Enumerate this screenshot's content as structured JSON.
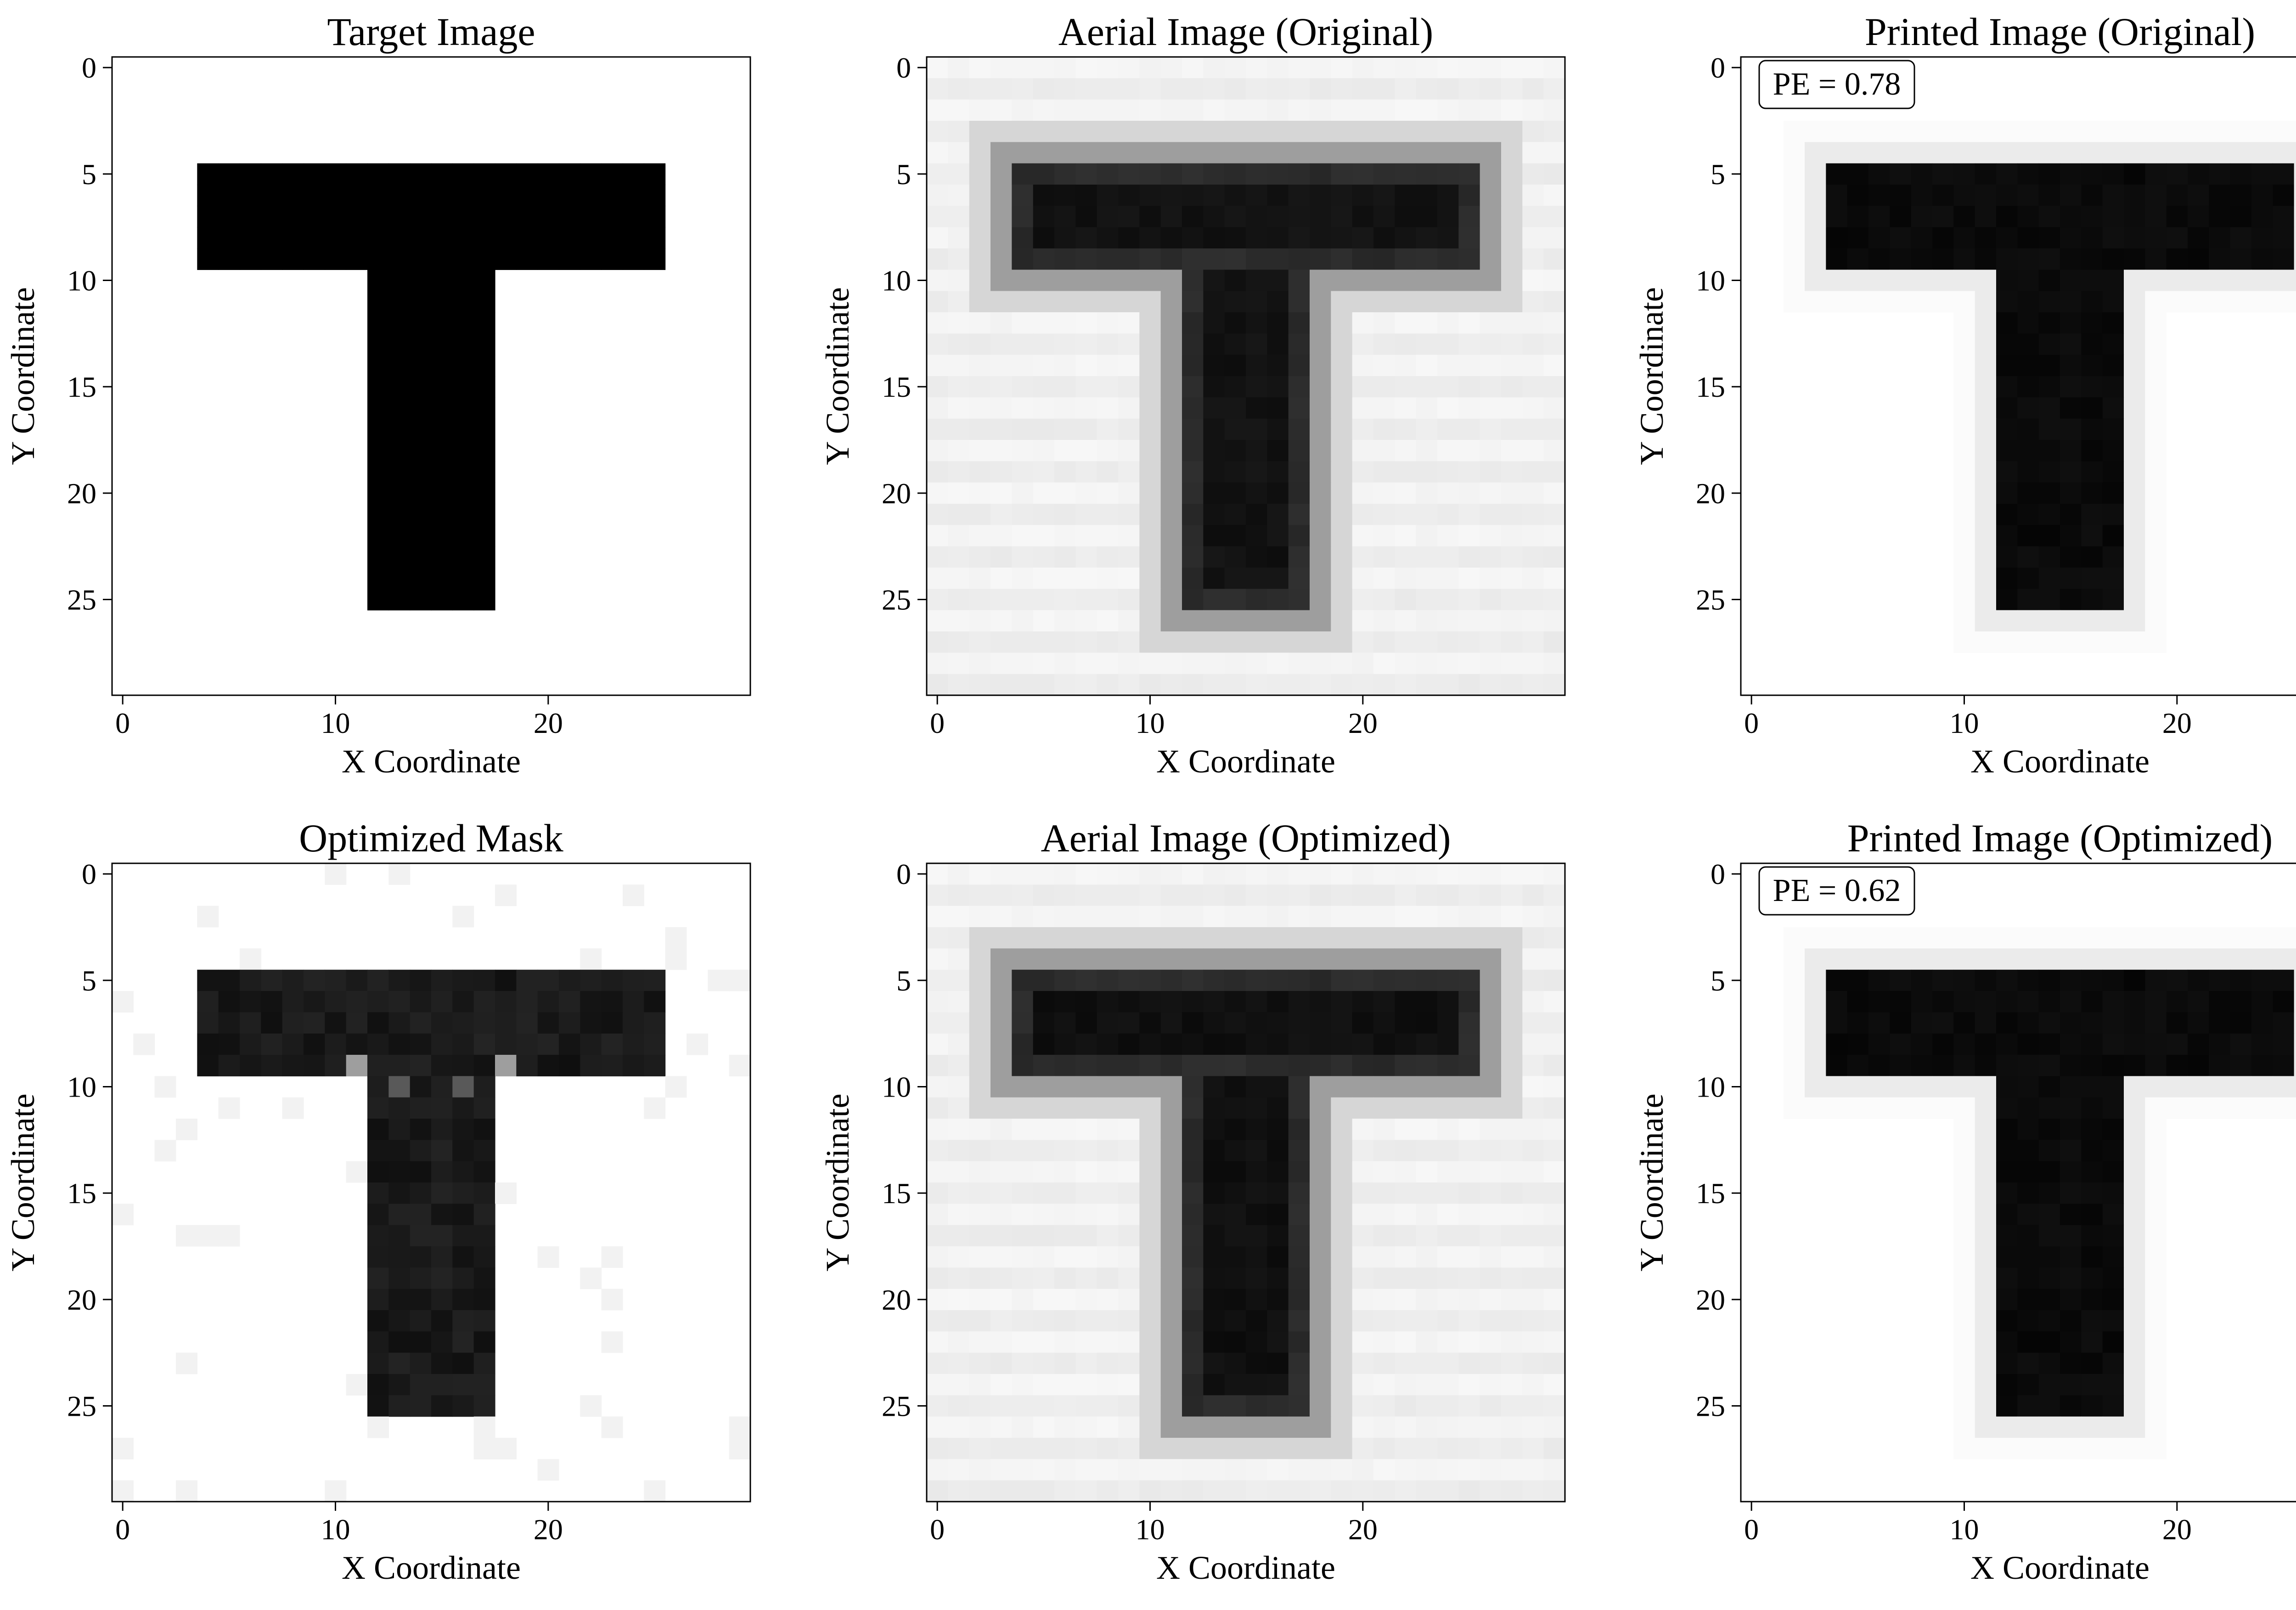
{
  "figure": {
    "background": "#ffffff",
    "axes_color": "#000000",
    "colormap": "gray (0 = black, 1 = white)"
  },
  "chart_data": [
    {
      "type": "heatmap",
      "title": "Target Image",
      "xlabel": "X Coordinate",
      "ylabel": "Y Coordinate",
      "xlim": [
        -0.5,
        29.5
      ],
      "ylim": [
        29.5,
        -0.5
      ],
      "xticks": [
        0,
        10,
        20
      ],
      "yticks": [
        0,
        5,
        10,
        15,
        20,
        25
      ],
      "grid_size": [
        30,
        30
      ],
      "shape": "T",
      "bar_rows": [
        5,
        9
      ],
      "bar_cols": [
        4,
        25
      ],
      "stem_rows": [
        10,
        25
      ],
      "stem_cols": [
        12,
        17
      ],
      "shape_value": 0,
      "background_value": 1,
      "variant": "target",
      "annotation": ""
    },
    {
      "type": "heatmap",
      "title": "Aerial Image (Original)",
      "xlabel": "X Coordinate",
      "ylabel": "Y Coordinate",
      "xlim": [
        -0.5,
        29.5
      ],
      "ylim": [
        29.5,
        -0.5
      ],
      "xticks": [
        0,
        10,
        20
      ],
      "yticks": [
        0,
        5,
        10,
        15,
        20,
        25
      ],
      "grid_size": [
        30,
        30
      ],
      "shape": "T",
      "bar_rows": [
        5,
        9
      ],
      "bar_cols": [
        4,
        25
      ],
      "stem_rows": [
        10,
        25
      ],
      "stem_cols": [
        12,
        17
      ],
      "shape_value": 0.05,
      "background_value": 0.97,
      "variant": "aerial",
      "annotation": ""
    },
    {
      "type": "heatmap",
      "title": "Printed Image (Original)",
      "xlabel": "X Coordinate",
      "ylabel": "Y Coordinate",
      "xlim": [
        -0.5,
        29.5
      ],
      "ylim": [
        29.5,
        -0.5
      ],
      "xticks": [
        0,
        10,
        20
      ],
      "yticks": [
        0,
        5,
        10,
        15,
        20,
        25
      ],
      "grid_size": [
        30,
        30
      ],
      "shape": "T",
      "bar_rows": [
        5,
        9
      ],
      "bar_cols": [
        4,
        25
      ],
      "stem_rows": [
        10,
        25
      ],
      "stem_cols": [
        12,
        17
      ],
      "shape_value": 0.02,
      "background_value": 1,
      "variant": "printed",
      "annotation": "PE = 0.78"
    },
    {
      "type": "heatmap",
      "title": "Optimized Mask",
      "xlabel": "X Coordinate",
      "ylabel": "Y Coordinate",
      "xlim": [
        -0.5,
        29.5
      ],
      "ylim": [
        29.5,
        -0.5
      ],
      "xticks": [
        0,
        10,
        20
      ],
      "yticks": [
        0,
        5,
        10,
        15,
        20,
        25
      ],
      "grid_size": [
        30,
        30
      ],
      "shape": "T",
      "bar_rows": [
        5,
        9
      ],
      "bar_cols": [
        4,
        25
      ],
      "stem_rows": [
        10,
        25
      ],
      "stem_cols": [
        12,
        17
      ],
      "shape_value": 0.06,
      "background_value": 1,
      "variant": "mask",
      "annotation": ""
    },
    {
      "type": "heatmap",
      "title": "Aerial Image (Optimized)",
      "xlabel": "X Coordinate",
      "ylabel": "Y Coordinate",
      "xlim": [
        -0.5,
        29.5
      ],
      "ylim": [
        29.5,
        -0.5
      ],
      "xticks": [
        0,
        10,
        20
      ],
      "yticks": [
        0,
        5,
        10,
        15,
        20,
        25
      ],
      "grid_size": [
        30,
        30
      ],
      "shape": "T",
      "bar_rows": [
        5,
        9
      ],
      "bar_cols": [
        4,
        25
      ],
      "stem_rows": [
        10,
        25
      ],
      "stem_cols": [
        12,
        17
      ],
      "shape_value": 0.04,
      "background_value": 0.97,
      "variant": "aerial",
      "annotation": ""
    },
    {
      "type": "heatmap",
      "title": "Printed Image (Optimized)",
      "xlabel": "X Coordinate",
      "ylabel": "Y Coordinate",
      "xlim": [
        -0.5,
        29.5
      ],
      "ylim": [
        29.5,
        -0.5
      ],
      "xticks": [
        0,
        10,
        20
      ],
      "yticks": [
        0,
        5,
        10,
        15,
        20,
        25
      ],
      "grid_size": [
        30,
        30
      ],
      "shape": "T",
      "bar_rows": [
        5,
        9
      ],
      "bar_cols": [
        4,
        25
      ],
      "stem_rows": [
        10,
        25
      ],
      "stem_cols": [
        12,
        17
      ],
      "shape_value": 0.02,
      "background_value": 1,
      "variant": "printed",
      "annotation": "PE = 0.62"
    }
  ]
}
